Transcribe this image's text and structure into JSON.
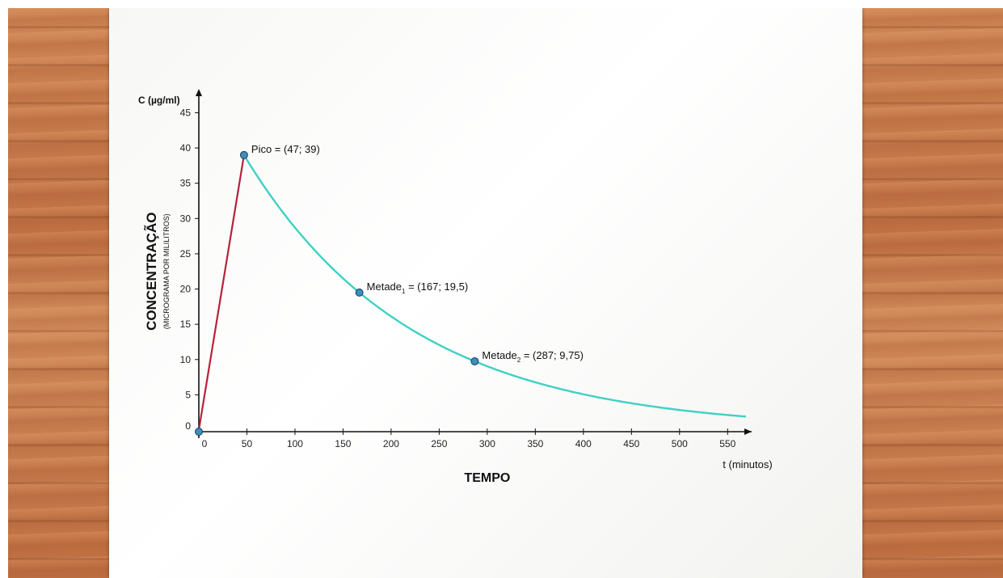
{
  "chart_data": {
    "type": "line",
    "xlabel": "TEMPO",
    "x_axis_unit_label": "t (minutos)",
    "ylabel": "C (µg/ml)",
    "y_side_title": "CONCENTRAÇÃO",
    "y_side_subtitle": "(MICROGRAMA POR MILILITROS)",
    "xlim": [
      0,
      575
    ],
    "ylim": [
      0,
      47
    ],
    "x_ticks": [
      {
        "value": 0,
        "label": "0"
      },
      {
        "value": 50,
        "label": "50"
      },
      {
        "value": 100,
        "label": "100"
      },
      {
        "value": 150,
        "label": "150"
      },
      {
        "value": 200,
        "label": "200"
      },
      {
        "value": 250,
        "label": "250"
      },
      {
        "value": 300,
        "label": "300"
      },
      {
        "value": 350,
        "label": "350"
      },
      {
        "value": 400,
        "label": "400"
      },
      {
        "value": 450,
        "label": "450"
      },
      {
        "value": 500,
        "label": "500"
      },
      {
        "value": 550,
        "label": "550"
      }
    ],
    "y_ticks": [
      {
        "value": 0,
        "label": "0"
      },
      {
        "value": 5,
        "label": "5"
      },
      {
        "value": 10,
        "label": "10"
      },
      {
        "value": 15,
        "label": "15"
      },
      {
        "value": 20,
        "label": "20"
      },
      {
        "value": 25,
        "label": "25"
      },
      {
        "value": 30,
        "label": "30"
      },
      {
        "value": 35,
        "label": "35"
      },
      {
        "value": 40,
        "label": "40"
      },
      {
        "value": 45,
        "label": "45"
      }
    ],
    "series": [
      {
        "color": "#b5233c",
        "points": [
          [
            0,
            0
          ],
          [
            47,
            39
          ]
        ]
      },
      {
        "color": "#3ed1c4",
        "decay": {
          "start_x": 47,
          "start_y": 39,
          "half_life": 120,
          "end_x": 570
        }
      }
    ],
    "points": [
      {
        "x": 0,
        "y": 0
      },
      {
        "x": 47,
        "y": 39,
        "label_main": "Pico = (47; 39)",
        "label_sub": "",
        "label_rest": ""
      },
      {
        "x": 167,
        "y": 19.5,
        "label_main": "Metade",
        "label_sub": "1",
        "label_rest": " = (167; 19,5)"
      },
      {
        "x": 287,
        "y": 9.75,
        "label_main": "Metade",
        "label_sub": "2",
        "label_rest": " = (287; 9,75)"
      }
    ],
    "marker_color": "#3a8fbd",
    "axis_color": "#111111"
  }
}
